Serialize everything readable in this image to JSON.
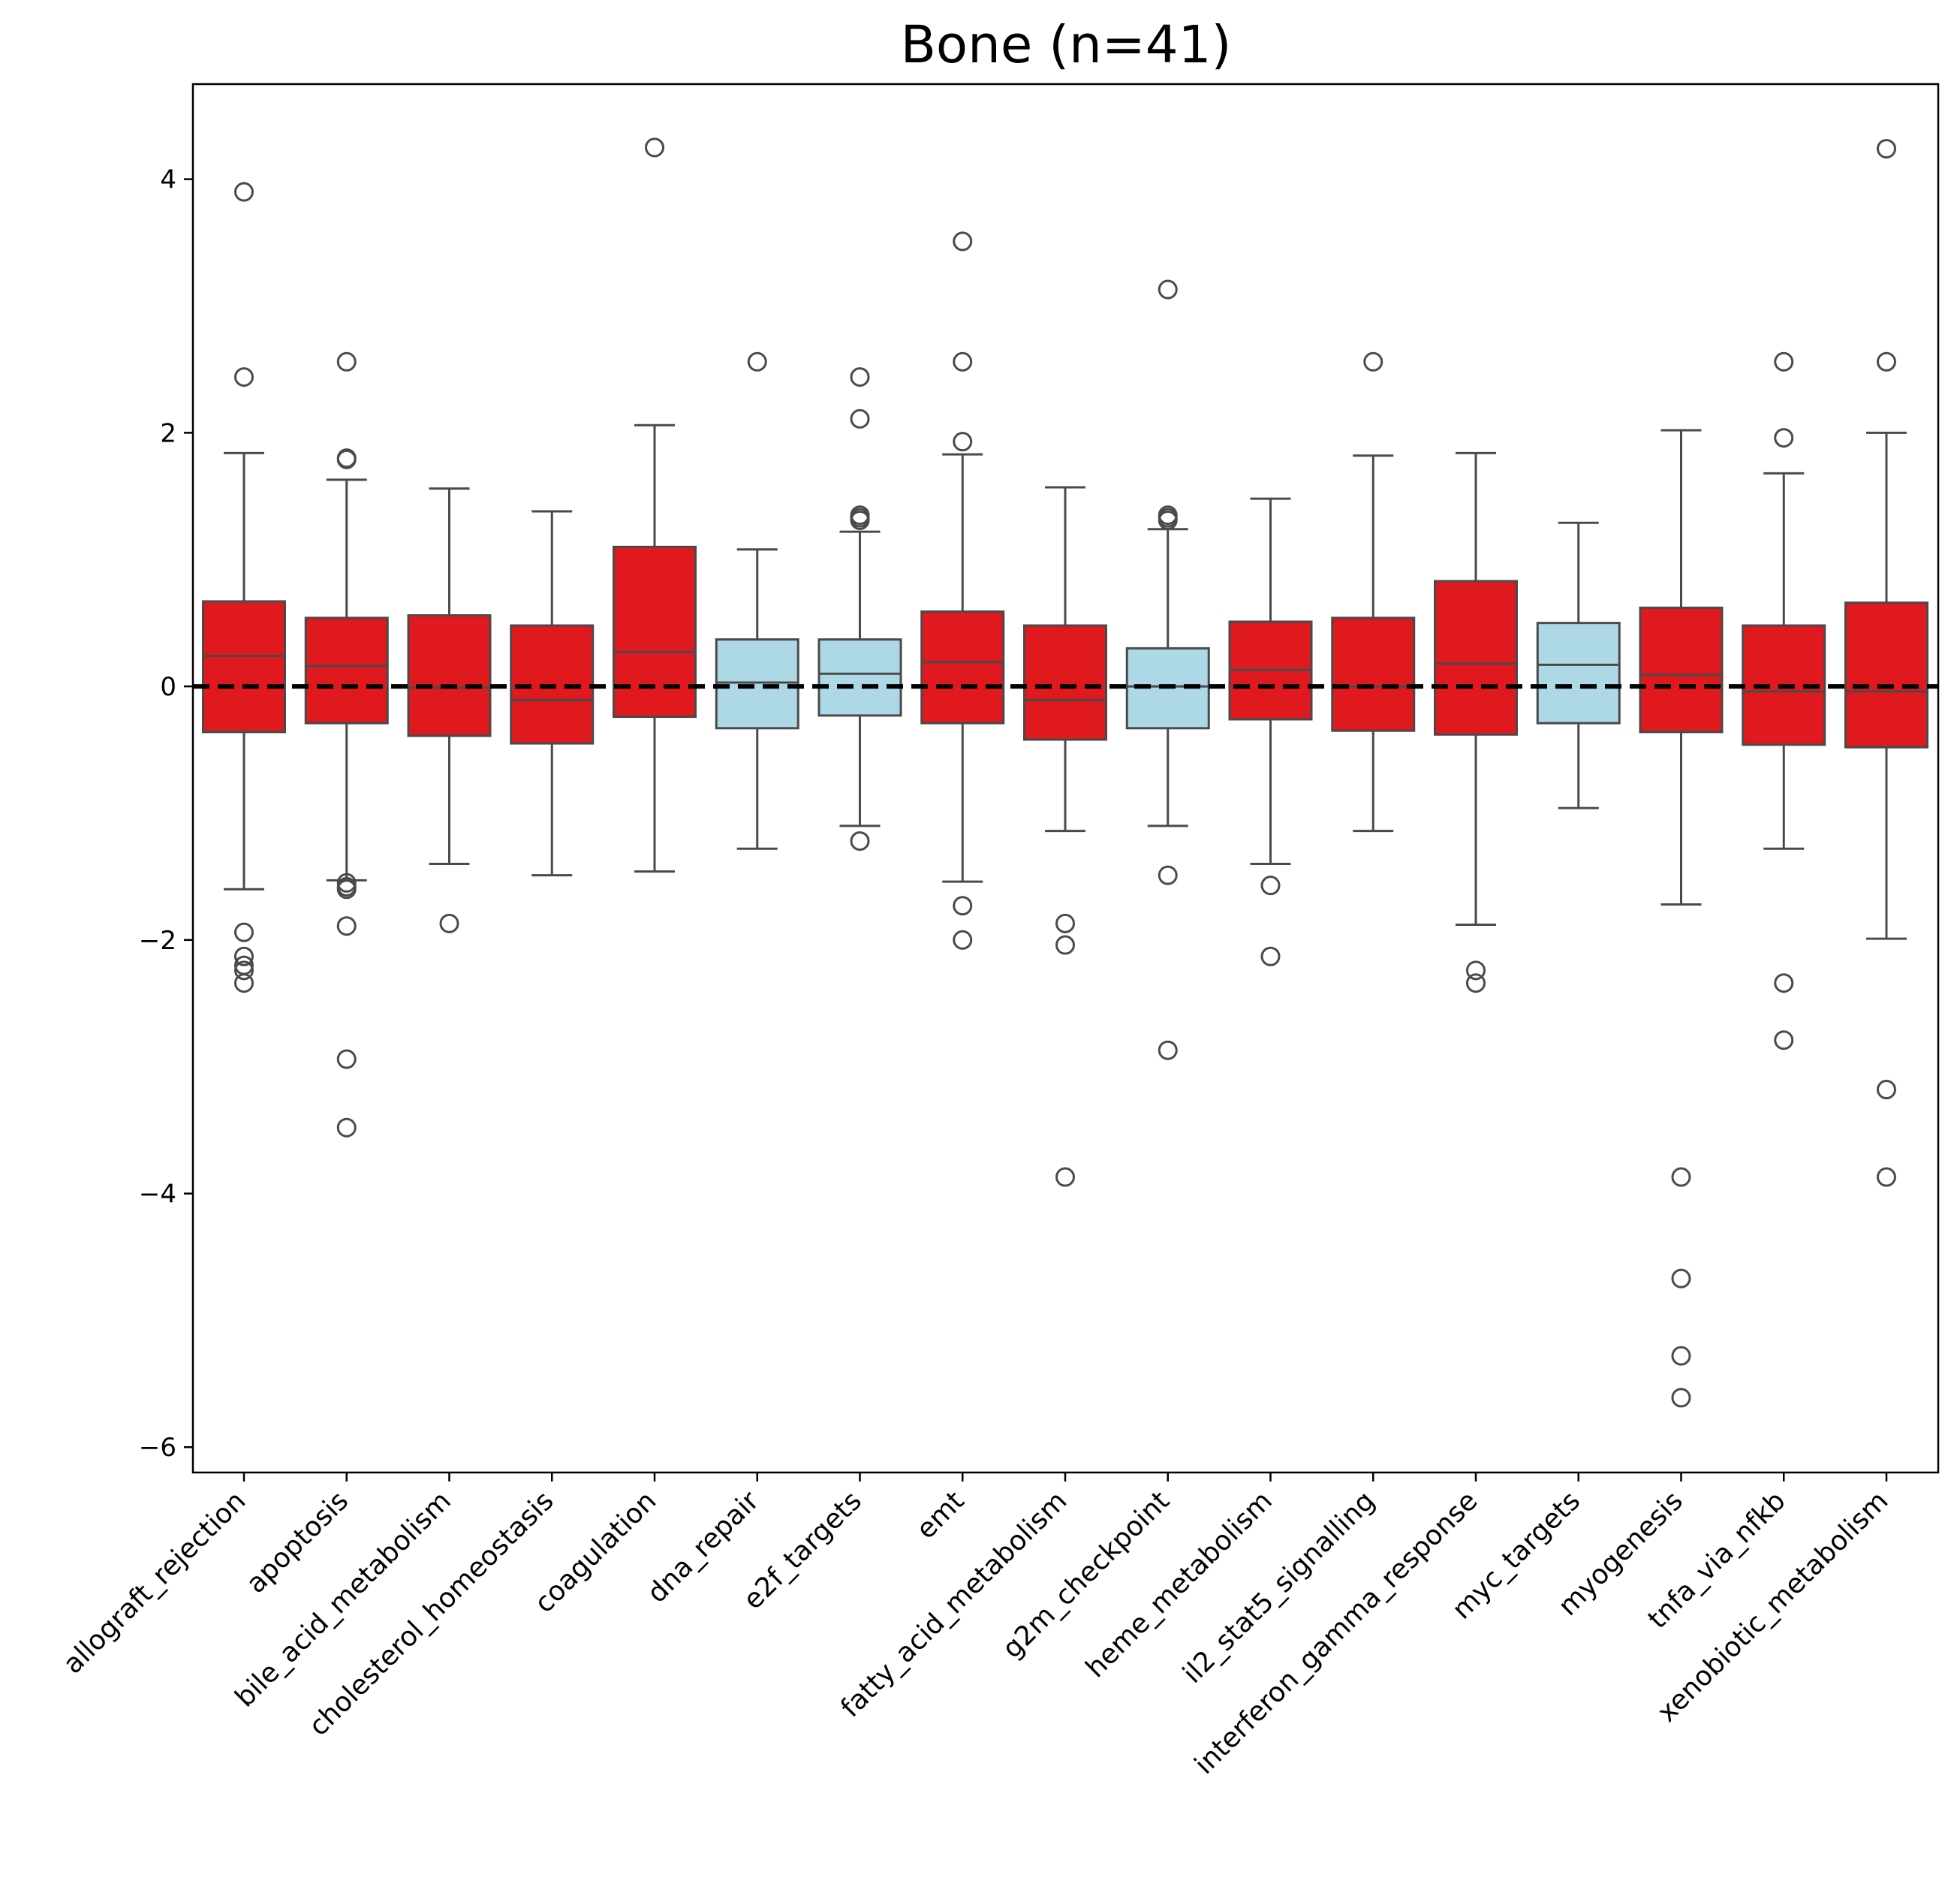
{
  "chart_data": {
    "type": "box",
    "title": "Bone (n=41)",
    "xlabel": "",
    "ylabel": "",
    "ylim": [
      -6.2,
      4.75
    ],
    "yticks": [
      4,
      2,
      0,
      -2,
      -4,
      -6
    ],
    "ytick_labels": [
      "4",
      "2",
      "0",
      "−2",
      "−4",
      "−6"
    ],
    "reference_line": {
      "y": 0,
      "style": "dashed",
      "color": "#000000"
    },
    "grid": false,
    "colors": {
      "up": "#e0191e",
      "down": "#add8e6",
      "outline": "#4a4a4a"
    },
    "boxes": [
      {
        "category": "allograft_rejection",
        "fill": "up",
        "whisker_low": -1.6,
        "q1": -0.36,
        "median": 0.24,
        "q3": 0.67,
        "whisker_high": 1.84,
        "outliers": [
          3.9,
          2.44,
          -1.94,
          -2.13,
          -2.2,
          -2.24,
          -2.34
        ]
      },
      {
        "category": "apoptosis",
        "fill": "up",
        "whisker_low": -1.53,
        "q1": -0.29,
        "median": 0.16,
        "q3": 0.54,
        "whisker_high": 1.63,
        "outliers": [
          2.56,
          1.8,
          1.79,
          -1.55,
          -1.58,
          -1.6,
          -1.89,
          -2.94,
          -3.48
        ]
      },
      {
        "category": "bile_acid_metabolism",
        "fill": "up",
        "whisker_low": -1.4,
        "q1": -0.39,
        "median": -0.01,
        "q3": 0.56,
        "whisker_high": 1.56,
        "outliers": [
          -1.87
        ]
      },
      {
        "category": "cholesterol_homeostasis",
        "fill": "up",
        "whisker_low": -1.49,
        "q1": -0.45,
        "median": -0.11,
        "q3": 0.48,
        "whisker_high": 1.38,
        "outliers": []
      },
      {
        "category": "coagulation",
        "fill": "up",
        "whisker_low": -1.46,
        "q1": -0.24,
        "median": 0.27,
        "q3": 1.1,
        "whisker_high": 2.06,
        "outliers": [
          4.25
        ]
      },
      {
        "category": "dna_repair",
        "fill": "down",
        "whisker_low": -1.28,
        "q1": -0.33,
        "median": 0.03,
        "q3": 0.37,
        "whisker_high": 1.08,
        "outliers": [
          2.56
        ]
      },
      {
        "category": "e2f_targets",
        "fill": "down",
        "whisker_low": -1.1,
        "q1": -0.23,
        "median": 0.1,
        "q3": 0.37,
        "whisker_high": 1.22,
        "outliers": [
          2.44,
          2.11,
          1.35,
          1.33,
          1.31,
          -1.22
        ]
      },
      {
        "category": "emt",
        "fill": "up",
        "whisker_low": -1.54,
        "q1": -0.29,
        "median": 0.19,
        "q3": 0.59,
        "whisker_high": 1.83,
        "outliers": [
          3.51,
          2.56,
          1.93,
          -1.73,
          -2.0
        ]
      },
      {
        "category": "fatty_acid_metabolism",
        "fill": "up",
        "whisker_low": -1.14,
        "q1": -0.42,
        "median": -0.11,
        "q3": 0.48,
        "whisker_high": 1.57,
        "outliers": [
          -1.87,
          -2.04,
          -3.87
        ]
      },
      {
        "category": "g2m_checkpoint",
        "fill": "down",
        "whisker_low": -1.1,
        "q1": -0.33,
        "median": 0.0,
        "q3": 0.3,
        "whisker_high": 1.24,
        "outliers": [
          3.13,
          1.35,
          1.33,
          1.31,
          -1.49,
          -2.87
        ]
      },
      {
        "category": "heme_metabolism",
        "fill": "up",
        "whisker_low": -1.4,
        "q1": -0.26,
        "median": 0.13,
        "q3": 0.51,
        "whisker_high": 1.48,
        "outliers": [
          -1.57,
          -2.13
        ]
      },
      {
        "category": "il2_stat5_signalling",
        "fill": "up",
        "whisker_low": -1.14,
        "q1": -0.35,
        "median": 0.0,
        "q3": 0.54,
        "whisker_high": 1.82,
        "outliers": [
          2.56
        ]
      },
      {
        "category": "interferon_gamma_response",
        "fill": "up",
        "whisker_low": -1.88,
        "q1": -0.38,
        "median": 0.18,
        "q3": 0.83,
        "whisker_high": 1.84,
        "outliers": [
          -2.24,
          -2.34
        ]
      },
      {
        "category": "myc_targets",
        "fill": "down",
        "whisker_low": -0.96,
        "q1": -0.29,
        "median": 0.17,
        "q3": 0.5,
        "whisker_high": 1.29,
        "outliers": []
      },
      {
        "category": "myogenesis",
        "fill": "up",
        "whisker_low": -1.72,
        "q1": -0.36,
        "median": 0.09,
        "q3": 0.62,
        "whisker_high": 2.02,
        "outliers": [
          -3.87,
          -4.67,
          -5.28,
          -5.61
        ]
      },
      {
        "category": "tnfa_via_nfkb",
        "fill": "up",
        "whisker_low": -1.28,
        "q1": -0.46,
        "median": -0.04,
        "q3": 0.48,
        "whisker_high": 1.68,
        "outliers": [
          2.56,
          1.96,
          -2.34,
          -2.79
        ]
      },
      {
        "category": "xenobiotic_metabolism",
        "fill": "up",
        "whisker_low": -1.99,
        "q1": -0.48,
        "median": -0.04,
        "q3": 0.66,
        "whisker_high": 2.0,
        "outliers": [
          4.24,
          2.56,
          -3.18,
          -3.87
        ]
      }
    ]
  }
}
